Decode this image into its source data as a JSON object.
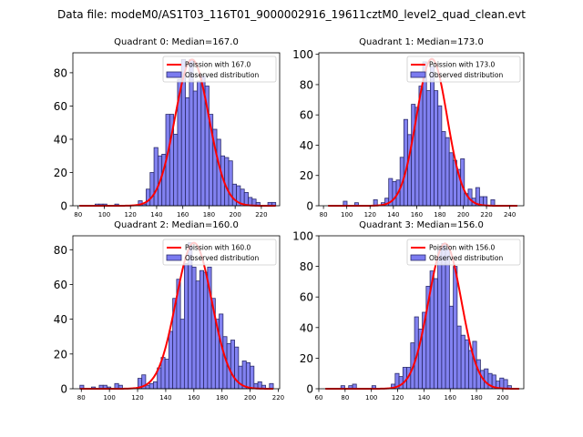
{
  "figure": {
    "suptitle": "Data file: modeM0/AS1T03_116T01_9000002916_19611cztM0_level2_quad_clean.evt"
  },
  "colors": {
    "bar_fill": "#7b7bf0",
    "bar_edge": "#2b2b6b",
    "poisson_line": "#ff0000"
  },
  "chart_data": [
    {
      "type": "bar",
      "title": "Quadrant 0: Median=167.0",
      "legend": {
        "line_label": "Poission with 167.0",
        "bar_label": "Observed distribution",
        "placement": "top-right"
      },
      "poisson_mean": 167.0,
      "poisson_peak": 88,
      "bin_start": 81,
      "bin_width": 3,
      "values": [
        0,
        0,
        0,
        0,
        1,
        1,
        1,
        0,
        0,
        1,
        0,
        0,
        0,
        0,
        0,
        3,
        1,
        10,
        20,
        35,
        30,
        31,
        55,
        55,
        43,
        76,
        88,
        65,
        88,
        69,
        75,
        78,
        72,
        55,
        46,
        40,
        30,
        29,
        27,
        13,
        12,
        10,
        8,
        5,
        4,
        2,
        0,
        0,
        2,
        2
      ],
      "xlim": [
        76,
        234
      ],
      "ylim": [
        0,
        92
      ],
      "xticks": [
        80,
        100,
        120,
        140,
        160,
        180,
        200,
        220
      ],
      "yticks": [
        0,
        20,
        40,
        60,
        80
      ]
    },
    {
      "type": "bar",
      "title": "Quadrant 1: Median=173.0",
      "legend": {
        "line_label": "Poission with 173.0",
        "bar_label": "Observed distribution",
        "placement": "top-right"
      },
      "poisson_mean": 173.0,
      "poisson_peak": 97,
      "bin_start": 84,
      "bin_width": 3.25,
      "values": [
        0,
        0,
        0,
        0,
        3,
        0,
        0,
        2,
        0,
        0,
        0,
        0,
        4,
        0,
        2,
        5,
        18,
        16,
        17,
        32,
        57,
        47,
        67,
        65,
        79,
        95,
        76,
        92,
        76,
        66,
        49,
        45,
        35,
        30,
        24,
        31,
        8,
        11,
        5,
        12,
        6,
        6,
        0,
        4,
        0,
        0,
        0,
        0,
        0,
        0
      ],
      "xlim": [
        76,
        252
      ],
      "ylim": [
        0,
        101
      ],
      "xticks": [
        80,
        100,
        120,
        140,
        160,
        180,
        200,
        220,
        240
      ],
      "yticks": [
        0,
        20,
        40,
        60,
        80,
        100
      ]
    },
    {
      "type": "bar",
      "title": "Quadrant 2: Median=160.0",
      "legend": {
        "line_label": "Poission with 160.0",
        "bar_label": "Observed distribution",
        "placement": "top-right"
      },
      "poisson_mean": 160.0,
      "poisson_peak": 84,
      "bin_start": 79,
      "bin_width": 2.75,
      "values": [
        2,
        0,
        0,
        1,
        0,
        2,
        2,
        1,
        0,
        3,
        2,
        0,
        0,
        0,
        0,
        6,
        8,
        2,
        3,
        4,
        12,
        18,
        17,
        33,
        52,
        63,
        40,
        72,
        84,
        70,
        62,
        68,
        67,
        70,
        52,
        40,
        43,
        30,
        26,
        28,
        24,
        13,
        16,
        15,
        13,
        3,
        4,
        2,
        0,
        3
      ],
      "xlim": [
        74,
        221
      ],
      "ylim": [
        0,
        88
      ],
      "xticks": [
        80,
        100,
        120,
        140,
        160,
        180,
        200,
        220
      ],
      "yticks": [
        0,
        20,
        40,
        60,
        80
      ]
    },
    {
      "type": "bar",
      "title": "Quadrant 3: Median=156.0",
      "legend": {
        "line_label": "Poission with 156.0",
        "bar_label": "Observed distribution",
        "placement": "top-right"
      },
      "poisson_mean": 156.0,
      "poisson_peak": 95,
      "bin_start": 65,
      "bin_width": 2.95,
      "values": [
        0,
        0,
        0,
        0,
        2,
        0,
        2,
        3,
        0,
        0,
        0,
        0,
        2,
        0,
        0,
        0,
        0,
        3,
        10,
        8,
        14,
        14,
        30,
        47,
        39,
        50,
        67,
        77,
        72,
        91,
        95,
        91,
        54,
        80,
        41,
        35,
        32,
        25,
        31,
        19,
        12,
        13,
        10,
        9,
        5,
        7,
        6,
        2,
        0,
        0
      ],
      "xlim": [
        60,
        216
      ],
      "ylim": [
        0,
        100
      ],
      "xticks": [
        60,
        80,
        100,
        120,
        140,
        160,
        180,
        200
      ],
      "yticks": [
        0,
        20,
        40,
        60,
        80,
        100
      ]
    }
  ]
}
